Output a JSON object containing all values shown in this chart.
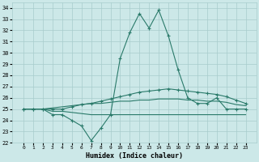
{
  "xlabel": "Humidex (Indice chaleur)",
  "x": [
    0,
    1,
    2,
    3,
    4,
    5,
    6,
    7,
    8,
    9,
    10,
    11,
    12,
    13,
    14,
    15,
    16,
    17,
    18,
    19,
    20,
    21,
    22,
    23
  ],
  "line1": [
    25,
    25,
    25,
    24.5,
    24.5,
    24,
    23.5,
    22.2,
    23.3,
    24.5,
    29.5,
    31.8,
    33.5,
    32.2,
    33.8,
    31.5,
    28.5,
    26,
    25.5,
    25.5,
    26,
    25,
    25,
    25
  ],
  "line2": [
    25,
    25,
    25,
    25,
    25,
    25.2,
    25.4,
    25.5,
    25.7,
    25.9,
    26.1,
    26.3,
    26.5,
    26.6,
    26.7,
    26.8,
    26.7,
    26.6,
    26.5,
    26.4,
    26.3,
    26.1,
    25.8,
    25.5
  ],
  "line3": [
    25,
    25,
    25,
    25.1,
    25.2,
    25.3,
    25.4,
    25.5,
    25.5,
    25.6,
    25.7,
    25.7,
    25.8,
    25.8,
    25.9,
    25.9,
    25.9,
    25.8,
    25.8,
    25.7,
    25.7,
    25.6,
    25.4,
    25.3
  ],
  "line4": [
    25,
    25,
    25,
    24.8,
    24.8,
    24.7,
    24.6,
    24.5,
    24.5,
    24.5,
    24.5,
    24.5,
    24.5,
    24.5,
    24.5,
    24.5,
    24.5,
    24.5,
    24.5,
    24.5,
    24.5,
    24.5,
    24.5,
    24.5
  ],
  "color": "#2a7a6a",
  "bg_color": "#cce8e8",
  "grid_color": "#a8cccc",
  "ylim": [
    22,
    34.5
  ],
  "yticks": [
    22,
    23,
    24,
    25,
    26,
    27,
    28,
    29,
    30,
    31,
    32,
    33,
    34
  ],
  "xticks": [
    0,
    1,
    2,
    3,
    4,
    5,
    6,
    7,
    8,
    9,
    10,
    11,
    12,
    13,
    14,
    15,
    16,
    17,
    18,
    19,
    20,
    21,
    22,
    23
  ]
}
